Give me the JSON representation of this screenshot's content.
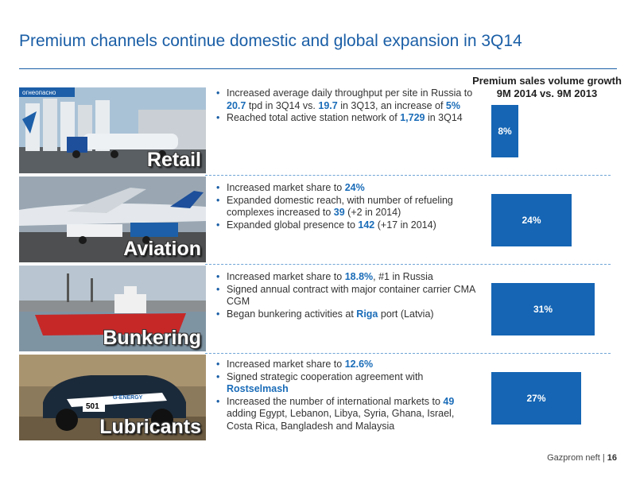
{
  "slide": {
    "title": "Premium channels continue domestic and global expansion in 3Q14",
    "chart_title_line1": "Premium sales volume growth",
    "chart_title_line2": "9M 2014 vs. 9M 2013"
  },
  "rows": [
    {
      "label": "Retail",
      "sign_text": "огнеопасно",
      "bullets": [
        [
          "Increased average daily throughput per site in Russia to ",
          "20.7",
          " tpd in 3Q14 vs. ",
          "19.7",
          " in 3Q13, an increase of ",
          "5%"
        ],
        [
          "Reached total active station network of ",
          "1,729",
          " in 3Q14"
        ]
      ]
    },
    {
      "label": "Aviation",
      "bullets": [
        [
          "Increased market share to ",
          "24%"
        ],
        [
          "Expanded domestic reach, with number of refueling complexes increased to ",
          "39",
          " (+2 in 2014)"
        ],
        [
          "Expanded global presence to ",
          "142",
          " (+17 in 2014)"
        ]
      ]
    },
    {
      "label": "Bunkering",
      "bullets": [
        [
          "Increased market share to ",
          "18.8%",
          ", #1 in Russia"
        ],
        [
          "Signed annual contract with major container carrier CMA CGM"
        ],
        [
          "Began bunkering activities at ",
          "Riga",
          " port (Latvia)"
        ]
      ]
    },
    {
      "label": "Lubricants",
      "car_number": "501",
      "car_brand": "G-ENERGY",
      "bullets": [
        [
          "Increased market share to ",
          "12.6%"
        ],
        [
          "Signed strategic cooperation agreement with ",
          "Rostselmash"
        ],
        [
          "Increased the number of international markets to ",
          "49",
          " adding Egypt, Lebanon, Libya, Syria, Ghana, Israel, Costa Rica, Bangladesh and Malaysia"
        ]
      ]
    }
  ],
  "chart_data": {
    "type": "bar",
    "orientation": "horizontal",
    "title": "Premium sales volume growth 9M 2014 vs. 9M 2013",
    "categories": [
      "Retail",
      "Aviation",
      "Bunkering",
      "Lubricants"
    ],
    "values": [
      8,
      24,
      31,
      27
    ],
    "value_labels": [
      "8%",
      "24%",
      "31%",
      "27%"
    ],
    "unit": "%",
    "xlim": [
      0,
      31
    ],
    "bar_color": "#1565b4",
    "grid": false,
    "axes_visible": false
  },
  "footer": {
    "company": "Gazprom neft |",
    "page": "16"
  },
  "colors": {
    "title": "#1a5ea6",
    "highlight": "#1a6cb8",
    "bar": "#1565b4",
    "divider": "#6fa4d6"
  }
}
